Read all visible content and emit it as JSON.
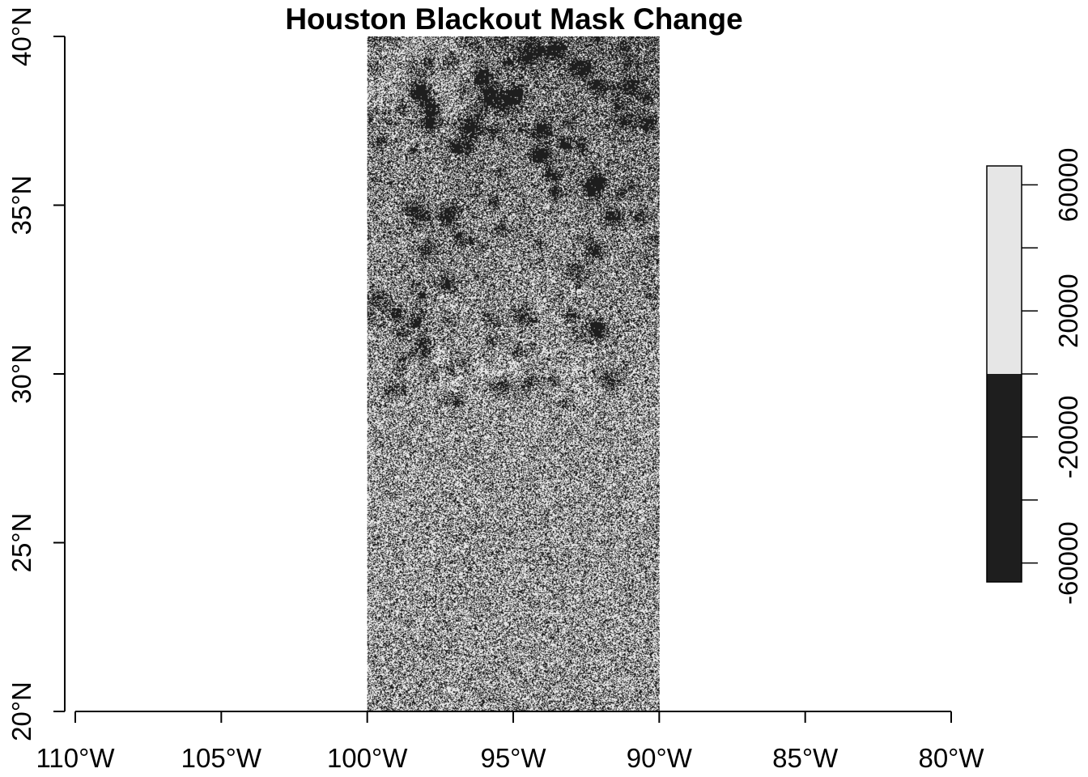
{
  "title": "Houston Blackout Mask Change",
  "map": {
    "x_axis": {
      "tick_labels": [
        "110°W",
        "105°W",
        "100°W",
        "95°W",
        "90°W",
        "85°W",
        "80°W"
      ],
      "values": [
        -110,
        -105,
        -100,
        -95,
        -90,
        -85,
        -80
      ],
      "range": [
        -110.35,
        -80
      ]
    },
    "y_axis": {
      "tick_labels": [
        "20°N",
        "25°N",
        "30°N",
        "35°N",
        "40°N"
      ],
      "values": [
        20,
        25,
        30,
        35,
        40
      ],
      "range": [
        20,
        40
      ]
    },
    "raster_extent": {
      "lon": [
        -100,
        -90
      ],
      "lat": [
        20,
        40
      ]
    },
    "raster_style": "grayscale night-lights change; dark clusters in the north (land), uniform mid-gray speckle in the south (Gulf of Mexico)"
  },
  "legend": {
    "tick_labels": [
      "-60000",
      "-20000",
      "20000",
      "60000"
    ],
    "values": [
      -60000,
      -20000,
      20000,
      60000
    ],
    "range": [
      -66000,
      66000
    ],
    "classes": [
      {
        "from": -66000,
        "to": 0,
        "color": "#1e1e1e"
      },
      {
        "from": 0,
        "to": 66000,
        "color": "#e6e6e6"
      }
    ]
  }
}
